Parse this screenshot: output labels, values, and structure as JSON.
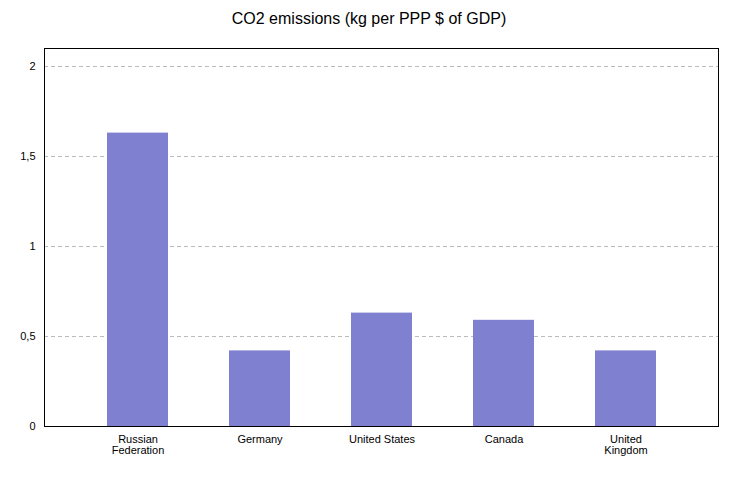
{
  "chart_data": {
    "type": "bar",
    "title": "CO2 emissions (kg per PPP $ of GDP)",
    "categories": [
      "Russian\nFederation",
      "Germany",
      "United States",
      "Canada",
      "United\nKingdom"
    ],
    "values": [
      1.63,
      0.42,
      0.63,
      0.59,
      0.42
    ],
    "color": "#8080d0",
    "ylim": [
      0,
      2.1
    ],
    "yticks": [
      0,
      {
        "value": 0.5,
        "label": "0,5"
      },
      1,
      {
        "value": 1.5,
        "label": "1,5"
      },
      2
    ],
    "grid": true
  }
}
